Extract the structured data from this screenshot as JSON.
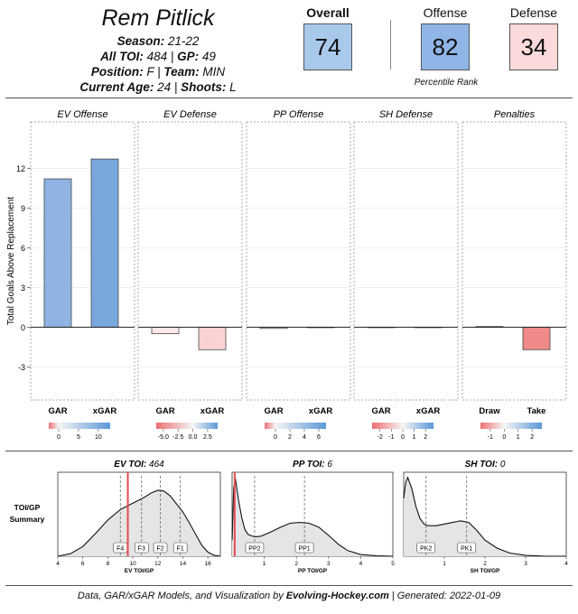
{
  "player": {
    "name": "Rem Pitlick",
    "season_label": "Season",
    "season": "21-22",
    "toi_label": "All TOI",
    "toi": "484",
    "gp_label": "GP",
    "gp": "49",
    "position_label": "Position",
    "position": "F",
    "team_label": "Team",
    "team": "MIN",
    "age_label": "Current Age",
    "age": "24",
    "shoots_label": "Shoots",
    "shoots": "L"
  },
  "ranks": {
    "overall_label": "Overall",
    "overall": "74",
    "offense_label": "Offense",
    "offense": "82",
    "defense_label": "Defense",
    "defense": "34",
    "note": "Percentile Rank",
    "colors": {
      "overall": "#a9c9ec",
      "offense": "#8fb6e6",
      "defense": "#fadadb"
    }
  },
  "chart_data": [
    {
      "type": "bar",
      "ylabel": "Total Goals Above Replacement",
      "ylim": [
        -5.5,
        15.5
      ],
      "yticks": [
        -3,
        0,
        3,
        6,
        9,
        12
      ],
      "panels": [
        {
          "title": "EV Offense",
          "categories": [
            "GAR",
            "xGAR"
          ],
          "values": [
            11.2,
            12.7
          ],
          "colors": [
            "#8fb4e3",
            "#79a8df"
          ],
          "legend": {
            "min": -2.5,
            "max": 13,
            "ticks": [
              0,
              5,
              10
            ]
          }
        },
        {
          "title": "EV Defense",
          "categories": [
            "GAR",
            "xGAR"
          ],
          "values": [
            -0.5,
            -1.7
          ],
          "colors": [
            "#fde7e7",
            "#fbd2d2"
          ],
          "legend": {
            "min": -6.2,
            "max": 4.2,
            "ticks": [
              -5.0,
              -2.5,
              0.0,
              2.5
            ]
          }
        },
        {
          "title": "PP Offense",
          "categories": [
            "GAR",
            "xGAR"
          ],
          "values": [
            -0.1,
            0.0
          ],
          "colors": [
            "#f3f3f3",
            "#f7f7f7"
          ],
          "legend": {
            "min": -1.5,
            "max": 7,
            "ticks": [
              0,
              2,
              4,
              6
            ]
          }
        },
        {
          "title": "SH Defense",
          "categories": [
            "GAR",
            "xGAR"
          ],
          "values": [
            0.0,
            0.0
          ],
          "colors": [
            "#f7f7f7",
            "#f7f7f7"
          ],
          "legend": {
            "min": -2.7,
            "max": 2.7,
            "ticks": [
              -2,
              -1,
              0,
              1,
              2
            ]
          }
        },
        {
          "title": "Penalties",
          "categories": [
            "Draw",
            "Take"
          ],
          "values": [
            0.05,
            -1.7
          ],
          "colors": [
            "#f4f4f4",
            "#f08a8a"
          ],
          "legend": {
            "min": -1.7,
            "max": 2.7,
            "ticks": [
              -1,
              0,
              1,
              2
            ]
          }
        }
      ]
    },
    {
      "type": "area",
      "summary_label_1": "TOI/GP",
      "summary_label_2": "Summary",
      "panels": [
        {
          "title_label": "EV TOI:",
          "title_value": "464",
          "xlabel": "EV TOI/GP",
          "xlim": [
            4,
            17
          ],
          "xticks": [
            4,
            6,
            8,
            10,
            12,
            14,
            16
          ],
          "player_value": 9.6,
          "markers": [
            {
              "label": "F4",
              "x": 9.0
            },
            {
              "label": "F3",
              "x": 10.7
            },
            {
              "label": "F2",
              "x": 12.2
            },
            {
              "label": "F1",
              "x": 13.8
            }
          ],
          "density_x": [
            4,
            5,
            6,
            7,
            8,
            9,
            9.5,
            10,
            10.5,
            11,
            11.5,
            12,
            12.5,
            13,
            13.5,
            14,
            14.5,
            15,
            15.5,
            16,
            16.5,
            17
          ],
          "density_y": [
            0.0,
            0.03,
            0.12,
            0.28,
            0.45,
            0.58,
            0.62,
            0.66,
            0.7,
            0.74,
            0.79,
            0.82,
            0.81,
            0.75,
            0.65,
            0.55,
            0.42,
            0.28,
            0.14,
            0.05,
            0.01,
            0.0
          ]
        },
        {
          "title_label": "PP TOI:",
          "title_value": "6",
          "xlabel": "PP TOI/GP",
          "xlim": [
            0,
            5
          ],
          "xticks": [
            1,
            2,
            3,
            4,
            5
          ],
          "player_value": 0.08,
          "markers": [
            {
              "label": "PP2",
              "x": 0.7
            },
            {
              "label": "PP1",
              "x": 2.25
            }
          ],
          "density_x": [
            0,
            0.05,
            0.1,
            0.2,
            0.3,
            0.4,
            0.5,
            0.7,
            0.9,
            1.2,
            1.5,
            1.8,
            2.1,
            2.4,
            2.7,
            3.0,
            3.3,
            3.6,
            4.0,
            4.5,
            5.0
          ],
          "density_y": [
            0.2,
            0.85,
            0.97,
            0.7,
            0.48,
            0.33,
            0.27,
            0.24,
            0.25,
            0.3,
            0.36,
            0.41,
            0.42,
            0.41,
            0.36,
            0.26,
            0.15,
            0.07,
            0.02,
            0.005,
            0.0
          ]
        },
        {
          "title_label": "SH TOI:",
          "title_value": "0",
          "xlabel": "SH TOI/GP",
          "xlim": [
            0,
            4
          ],
          "xticks": [
            1,
            2,
            3,
            4
          ],
          "player_value": null,
          "markers": [
            {
              "label": "PK2",
              "x": 0.55
            },
            {
              "label": "PK1",
              "x": 1.55
            }
          ],
          "density_x": [
            0,
            0.05,
            0.1,
            0.2,
            0.3,
            0.4,
            0.5,
            0.6,
            0.8,
            1.0,
            1.2,
            1.4,
            1.6,
            1.8,
            2.0,
            2.3,
            2.6,
            3.0,
            3.5,
            4.0
          ],
          "density_y": [
            0.72,
            0.92,
            0.98,
            0.84,
            0.62,
            0.47,
            0.4,
            0.38,
            0.38,
            0.4,
            0.42,
            0.44,
            0.42,
            0.32,
            0.2,
            0.1,
            0.04,
            0.01,
            0.0,
            0.0
          ]
        }
      ]
    }
  ],
  "footer": {
    "prefix": "Data, GAR/xGAR Models, and Visualization by",
    "site": "Evolving-Hockey.com",
    "generated_label": "| Generated:",
    "generated": "2022-01-09"
  }
}
